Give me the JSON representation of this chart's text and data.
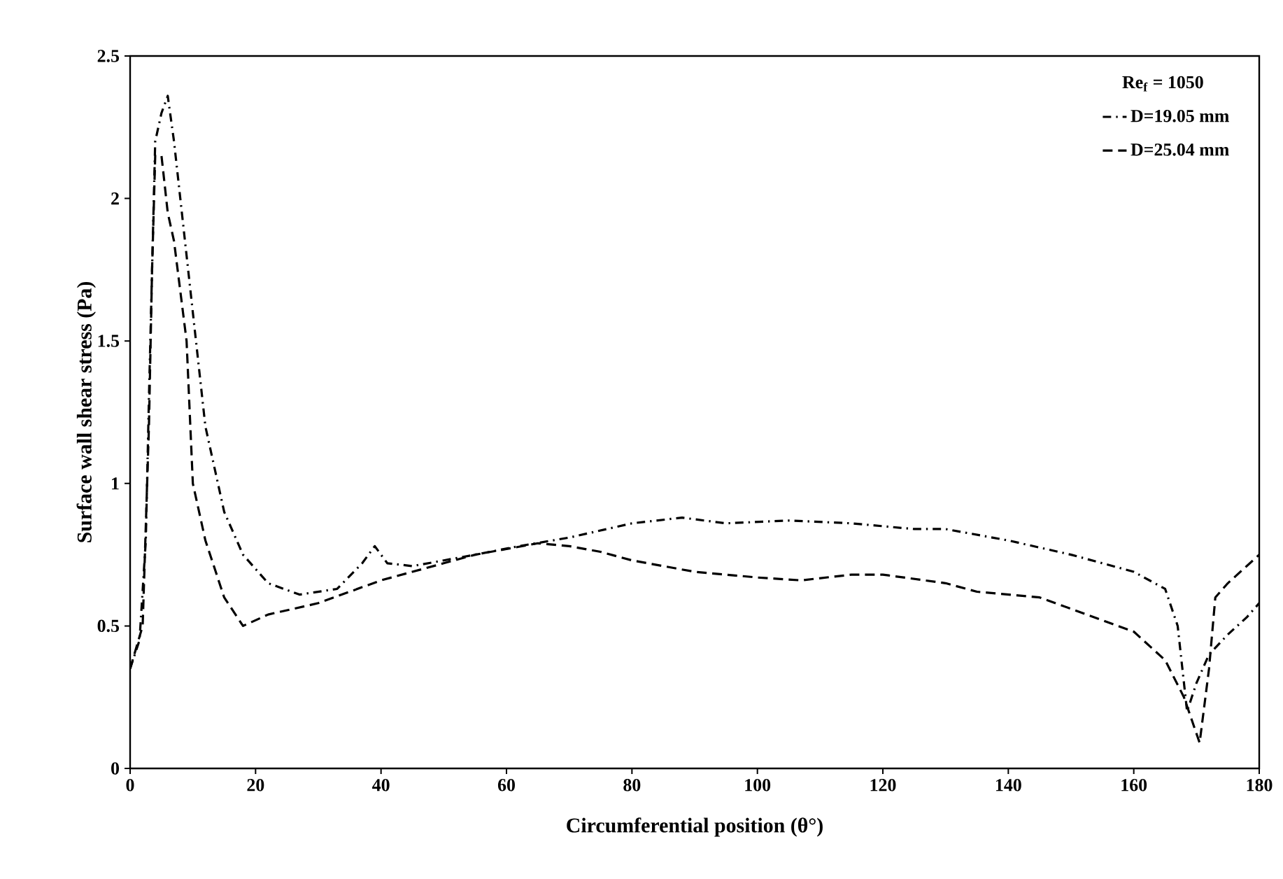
{
  "chart_data": {
    "type": "line",
    "xlabel": "Circumferential position (θ°)",
    "ylabel": "Surface wall  shear stress (Pa)",
    "legend_title": "Re$_{f}$  = 1050",
    "xlim": [
      0,
      180
    ],
    "xticks": [
      0,
      20,
      40,
      60,
      80,
      100,
      120,
      140,
      160,
      180
    ],
    "ylim": [
      0,
      2.5
    ],
    "yticks": [
      0,
      0.5,
      1,
      1.5,
      2,
      2.5
    ],
    "grid": false,
    "legend": "top right",
    "marker": "none",
    "series": [
      {
        "name": "D=19.05 mm",
        "color": "#000000",
        "line_style": "dashdot",
        "x": [
          0,
          1.5,
          2.5,
          3,
          4,
          5,
          6,
          7,
          8,
          10,
          12,
          15,
          18,
          22,
          27,
          33,
          37,
          39,
          41,
          45,
          50,
          55,
          62,
          70,
          80,
          88,
          95,
          105,
          115,
          125,
          130,
          140,
          150,
          160,
          165,
          167,
          168.5,
          170,
          172,
          175,
          178,
          180
        ],
        "values": [
          0.35,
          0.45,
          0.8,
          1.3,
          2.2,
          2.3,
          2.36,
          2.2,
          2.0,
          1.6,
          1.2,
          0.9,
          0.75,
          0.65,
          0.61,
          0.63,
          0.72,
          0.78,
          0.72,
          0.71,
          0.73,
          0.75,
          0.78,
          0.81,
          0.86,
          0.88,
          0.86,
          0.87,
          0.86,
          0.84,
          0.84,
          0.8,
          0.75,
          0.69,
          0.63,
          0.5,
          0.2,
          0.3,
          0.4,
          0.47,
          0.53,
          0.58
        ]
      },
      {
        "name": "D=25.04 mm",
        "color": "#000000",
        "line_style": "dashed",
        "x": [
          0,
          2,
          3,
          3.5,
          4,
          5,
          6,
          7,
          9,
          10,
          12,
          15,
          18,
          22,
          30,
          35,
          40,
          45,
          50,
          55,
          60,
          65,
          70,
          75,
          80,
          90,
          100,
          107,
          115,
          120,
          130,
          135,
          145,
          150,
          160,
          165,
          168,
          170.5,
          172,
          173,
          175,
          180
        ],
        "values": [
          0.35,
          0.5,
          1.2,
          1.75,
          2.15,
          2.15,
          1.95,
          1.85,
          1.5,
          1.0,
          0.8,
          0.6,
          0.5,
          0.54,
          0.58,
          0.62,
          0.66,
          0.69,
          0.72,
          0.75,
          0.77,
          0.79,
          0.78,
          0.76,
          0.73,
          0.69,
          0.67,
          0.66,
          0.68,
          0.68,
          0.65,
          0.62,
          0.6,
          0.56,
          0.48,
          0.38,
          0.25,
          0.09,
          0.35,
          0.6,
          0.65,
          0.75
        ]
      }
    ]
  }
}
